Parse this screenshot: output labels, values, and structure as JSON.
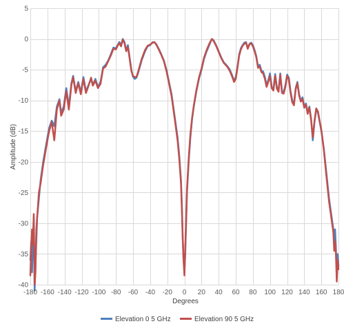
{
  "chart_data": {
    "type": "line",
    "title": "",
    "xlabel": "Degrees",
    "ylabel": "Amplitude (dB)",
    "xlim": [
      -180,
      180
    ],
    "ylim": [
      -40,
      5
    ],
    "x_ticks": [
      -180,
      -160,
      -140,
      -120,
      -100,
      -80,
      -60,
      -40,
      -20,
      0,
      20,
      40,
      60,
      80,
      100,
      120,
      140,
      160,
      180
    ],
    "y_ticks": [
      5,
      0,
      -5,
      -10,
      -15,
      -20,
      -25,
      -30,
      -35,
      -40
    ],
    "grid": true,
    "legend_position": "bottom",
    "series": [
      {
        "name": "Elevation 0 5 GHz",
        "color": "#4f81bd",
        "points": [
          [
            -180,
            -36
          ],
          [
            -179,
            -33
          ],
          [
            -178,
            -38
          ],
          [
            -176,
            -29
          ],
          [
            -175,
            -41
          ],
          [
            -174,
            -37
          ],
          [
            -172,
            -29
          ],
          [
            -170,
            -26
          ],
          [
            -168,
            -23
          ],
          [
            -165,
            -20
          ],
          [
            -160,
            -16
          ],
          [
            -158,
            -14.5
          ],
          [
            -155,
            -13.3
          ],
          [
            -152,
            -14.2
          ],
          [
            -149,
            -11
          ],
          [
            -146,
            -9.8
          ],
          [
            -144,
            -12
          ],
          [
            -141,
            -11
          ],
          [
            -138,
            -8
          ],
          [
            -135,
            -11
          ],
          [
            -132,
            -7.2
          ],
          [
            -130,
            -6
          ],
          [
            -127,
            -8.5
          ],
          [
            -124,
            -7
          ],
          [
            -121,
            -8.7
          ],
          [
            -118,
            -6.2
          ],
          [
            -115,
            -8.5
          ],
          [
            -112,
            -7.5
          ],
          [
            -109,
            -6.5
          ],
          [
            -107,
            -7.5
          ],
          [
            -104,
            -6.5
          ],
          [
            -101,
            -7.8
          ],
          [
            -98,
            -7
          ],
          [
            -95,
            -4.6
          ],
          [
            -92,
            -4.2
          ],
          [
            -89,
            -3.5
          ],
          [
            -86,
            -2.5
          ],
          [
            -83,
            -1.4
          ],
          [
            -80,
            -1.5
          ],
          [
            -78,
            -1
          ],
          [
            -76,
            -0.5
          ],
          [
            -74,
            -1
          ],
          [
            -72,
            0
          ],
          [
            -70,
            -0.5
          ],
          [
            -68,
            -1.8
          ],
          [
            -66,
            -1
          ],
          [
            -64,
            -3
          ],
          [
            -62,
            -5
          ],
          [
            -60,
            -6.2
          ],
          [
            -58,
            -6.5
          ],
          [
            -56,
            -6.3
          ],
          [
            -54,
            -5.5
          ],
          [
            -50,
            -3.5
          ],
          [
            -46,
            -2
          ],
          [
            -43,
            -1.2
          ],
          [
            -40,
            -1
          ],
          [
            -37,
            -0.5
          ],
          [
            -35,
            -0.6
          ],
          [
            -33,
            -0.8
          ],
          [
            -30,
            -1.6
          ],
          [
            -27,
            -2.5
          ],
          [
            -24,
            -3.5
          ],
          [
            -21,
            -5
          ],
          [
            -18,
            -7
          ],
          [
            -15,
            -9
          ],
          [
            -12,
            -12
          ],
          [
            -10,
            -14
          ],
          [
            -8,
            -16
          ],
          [
            -6,
            -19
          ],
          [
            -4,
            -23
          ],
          [
            -3,
            -27
          ],
          [
            -2,
            -32
          ],
          [
            -1,
            -36
          ],
          [
            0,
            -38
          ],
          [
            1,
            -35
          ],
          [
            2,
            -30
          ],
          [
            3,
            -25
          ],
          [
            5,
            -20
          ],
          [
            7,
            -16
          ],
          [
            9,
            -13
          ],
          [
            11,
            -11
          ],
          [
            14,
            -8.5
          ],
          [
            17,
            -6.5
          ],
          [
            20,
            -5
          ],
          [
            23,
            -3.2
          ],
          [
            26,
            -2
          ],
          [
            29,
            -1
          ],
          [
            32,
            0
          ],
          [
            34,
            -0.2
          ],
          [
            37,
            -1
          ],
          [
            40,
            -2
          ],
          [
            43,
            -3
          ],
          [
            46,
            -3.8
          ],
          [
            50,
            -4.4
          ],
          [
            53,
            -5
          ],
          [
            56,
            -6
          ],
          [
            58,
            -6.8
          ],
          [
            60,
            -6.2
          ],
          [
            62,
            -4.5
          ],
          [
            64,
            -2.5
          ],
          [
            66,
            -1.5
          ],
          [
            68,
            -1
          ],
          [
            70,
            -0.6
          ],
          [
            72,
            -0.5
          ],
          [
            74,
            -1.5
          ],
          [
            76,
            -0.8
          ],
          [
            78,
            -0.6
          ],
          [
            80,
            -1
          ],
          [
            82,
            -1.8
          ],
          [
            84,
            -2.8
          ],
          [
            86,
            -4.5
          ],
          [
            88,
            -4.2
          ],
          [
            90,
            -5.2
          ],
          [
            92,
            -5.3
          ],
          [
            94,
            -6.2
          ],
          [
            96,
            -7.5
          ],
          [
            98,
            -6.7
          ],
          [
            100,
            -5.6
          ],
          [
            102,
            -7.8
          ],
          [
            104,
            -8.2
          ],
          [
            106,
            -5.7
          ],
          [
            108,
            -7.8
          ],
          [
            110,
            -8.3
          ],
          [
            112,
            -5.6
          ],
          [
            114,
            -8.5
          ],
          [
            116,
            -8.6
          ],
          [
            118,
            -7.5
          ],
          [
            120,
            -5.8
          ],
          [
            122,
            -6.3
          ],
          [
            124,
            -8.5
          ],
          [
            126,
            -10
          ],
          [
            128,
            -10.5
          ],
          [
            130,
            -8
          ],
          [
            132,
            -7
          ],
          [
            134,
            -9
          ],
          [
            136,
            -10
          ],
          [
            138,
            -9.5
          ],
          [
            140,
            -11
          ],
          [
            142,
            -10.5
          ],
          [
            144,
            -12
          ],
          [
            146,
            -11
          ],
          [
            148,
            -13
          ],
          [
            150,
            -16.5
          ],
          [
            152,
            -13.5
          ],
          [
            154,
            -11.5
          ],
          [
            156,
            -12
          ],
          [
            158,
            -13.5
          ],
          [
            160,
            -15
          ],
          [
            163,
            -18
          ],
          [
            166,
            -22
          ],
          [
            169,
            -26
          ],
          [
            172,
            -29
          ],
          [
            174,
            -31
          ],
          [
            175,
            -33
          ],
          [
            176,
            -31
          ],
          [
            177,
            -34
          ],
          [
            178,
            -39
          ],
          [
            179,
            -35
          ],
          [
            180,
            -37
          ]
        ]
      },
      {
        "name": "Elevation 90 5 GHz",
        "color": "#c0504d",
        "points": [
          [
            -180,
            -38.5
          ],
          [
            -179,
            -34
          ],
          [
            -178,
            -31
          ],
          [
            -177,
            -33.5
          ],
          [
            -176,
            -28.5
          ],
          [
            -175,
            -40
          ],
          [
            -174,
            -38
          ],
          [
            -173,
            -31
          ],
          [
            -172,
            -29
          ],
          [
            -170,
            -25
          ],
          [
            -168,
            -23.5
          ],
          [
            -165,
            -20.5
          ],
          [
            -160,
            -16.5
          ],
          [
            -158,
            -15
          ],
          [
            -155,
            -13.5
          ],
          [
            -152,
            -16.5
          ],
          [
            -149,
            -11.5
          ],
          [
            -146,
            -10
          ],
          [
            -144,
            -12.5
          ],
          [
            -141,
            -11.5
          ],
          [
            -138,
            -8.5
          ],
          [
            -135,
            -11.5
          ],
          [
            -132,
            -7.5
          ],
          [
            -130,
            -6.2
          ],
          [
            -127,
            -8.8
          ],
          [
            -124,
            -7.2
          ],
          [
            -121,
            -9
          ],
          [
            -118,
            -6.5
          ],
          [
            -115,
            -8.8
          ],
          [
            -112,
            -7.6
          ],
          [
            -109,
            -6.3
          ],
          [
            -107,
            -7.6
          ],
          [
            -104,
            -6.8
          ],
          [
            -101,
            -8
          ],
          [
            -98,
            -7.3
          ],
          [
            -95,
            -4.8
          ],
          [
            -92,
            -4.5
          ],
          [
            -89,
            -3.6
          ],
          [
            -86,
            -2.7
          ],
          [
            -83,
            -1.6
          ],
          [
            -80,
            -1.7
          ],
          [
            -78,
            -1.1
          ],
          [
            -76,
            -0.7
          ],
          [
            -74,
            -1.2
          ],
          [
            -72,
            -0.1
          ],
          [
            -70,
            -0.7
          ],
          [
            -68,
            -2
          ],
          [
            -66,
            -1.3
          ],
          [
            -64,
            -3.2
          ],
          [
            -62,
            -5.2
          ],
          [
            -60,
            -6
          ],
          [
            -58,
            -6.2
          ],
          [
            -56,
            -6.2
          ],
          [
            -54,
            -5.3
          ],
          [
            -50,
            -3.3
          ],
          [
            -46,
            -1.8
          ],
          [
            -43,
            -1.1
          ],
          [
            -40,
            -0.9
          ],
          [
            -37,
            -0.6
          ],
          [
            -35,
            -0.5
          ],
          [
            -33,
            -0.9
          ],
          [
            -30,
            -1.7
          ],
          [
            -27,
            -2.6
          ],
          [
            -24,
            -3.6
          ],
          [
            -21,
            -5.2
          ],
          [
            -18,
            -7.2
          ],
          [
            -15,
            -9.3
          ],
          [
            -12,
            -12.3
          ],
          [
            -10,
            -14.4
          ],
          [
            -8,
            -16.5
          ],
          [
            -6,
            -19.5
          ],
          [
            -4,
            -23.5
          ],
          [
            -3,
            -27.5
          ],
          [
            -2,
            -32.5
          ],
          [
            -1,
            -36
          ],
          [
            0,
            -38.5
          ],
          [
            1,
            -34
          ],
          [
            2,
            -29.5
          ],
          [
            3,
            -24.5
          ],
          [
            5,
            -19.5
          ],
          [
            7,
            -15.5
          ],
          [
            9,
            -12.8
          ],
          [
            11,
            -10.8
          ],
          [
            14,
            -8.3
          ],
          [
            17,
            -6.3
          ],
          [
            20,
            -4.8
          ],
          [
            23,
            -3
          ],
          [
            26,
            -1.8
          ],
          [
            29,
            -0.8
          ],
          [
            32,
            0
          ],
          [
            34,
            -0.3
          ],
          [
            37,
            -1.1
          ],
          [
            40,
            -2.1
          ],
          [
            43,
            -3.1
          ],
          [
            46,
            -3.9
          ],
          [
            50,
            -4.5
          ],
          [
            53,
            -5.2
          ],
          [
            56,
            -6.2
          ],
          [
            58,
            -7
          ],
          [
            60,
            -6.5
          ],
          [
            62,
            -4.7
          ],
          [
            64,
            -2.7
          ],
          [
            66,
            -1.7
          ],
          [
            68,
            -1.1
          ],
          [
            70,
            -0.8
          ],
          [
            72,
            -0.6
          ],
          [
            74,
            -1.6
          ],
          [
            76,
            -0.9
          ],
          [
            78,
            -0.7
          ],
          [
            80,
            -1.2
          ],
          [
            82,
            -2
          ],
          [
            84,
            -3
          ],
          [
            86,
            -4.7
          ],
          [
            88,
            -4.5
          ],
          [
            90,
            -5.4
          ],
          [
            92,
            -5.6
          ],
          [
            94,
            -6.5
          ],
          [
            96,
            -7.8
          ],
          [
            98,
            -7
          ],
          [
            100,
            -6
          ],
          [
            102,
            -8
          ],
          [
            104,
            -8.4
          ],
          [
            106,
            -6
          ],
          [
            108,
            -8.1
          ],
          [
            110,
            -8.6
          ],
          [
            112,
            -5.8
          ],
          [
            114,
            -8.8
          ],
          [
            116,
            -8.9
          ],
          [
            118,
            -7.8
          ],
          [
            120,
            -6
          ],
          [
            122,
            -6.6
          ],
          [
            124,
            -8.8
          ],
          [
            126,
            -10.3
          ],
          [
            128,
            -10.8
          ],
          [
            130,
            -8.2
          ],
          [
            132,
            -7.2
          ],
          [
            134,
            -9.2
          ],
          [
            136,
            -10.2
          ],
          [
            138,
            -9.8
          ],
          [
            140,
            -11.2
          ],
          [
            142,
            -10.7
          ],
          [
            144,
            -12.2
          ],
          [
            146,
            -11.2
          ],
          [
            148,
            -13.2
          ],
          [
            150,
            -16
          ],
          [
            152,
            -13.3
          ],
          [
            154,
            -11.3
          ],
          [
            156,
            -11.8
          ],
          [
            158,
            -13.3
          ],
          [
            160,
            -14.8
          ],
          [
            163,
            -18.2
          ],
          [
            166,
            -22.5
          ],
          [
            169,
            -26.5
          ],
          [
            172,
            -29.5
          ],
          [
            174,
            -31.5
          ],
          [
            175,
            -34.5
          ],
          [
            176,
            -33
          ],
          [
            177,
            -35
          ],
          [
            178,
            -39.5
          ],
          [
            179,
            -36
          ],
          [
            180,
            -37.5
          ]
        ]
      }
    ]
  }
}
